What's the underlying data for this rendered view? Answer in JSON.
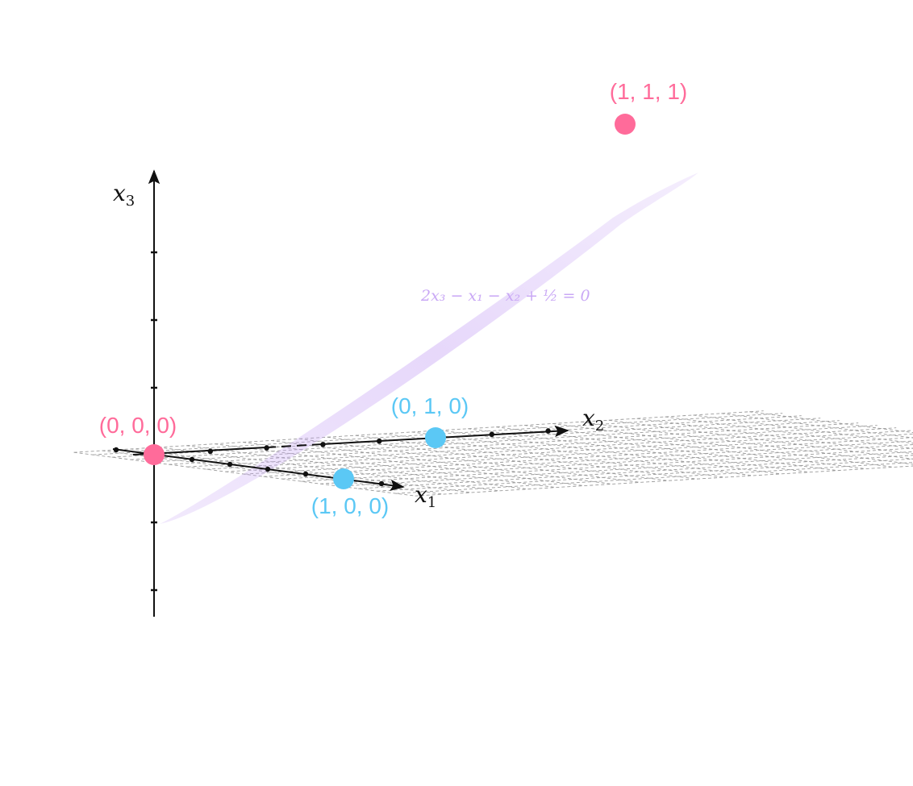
{
  "axes": {
    "x1": {
      "name": "x",
      "sub": "1"
    },
    "x2": {
      "name": "x",
      "sub": "2"
    },
    "x3": {
      "name": "x",
      "sub": "3"
    }
  },
  "points": [
    {
      "label": "(0, 0, 0)",
      "coords": [
        0,
        0,
        0
      ],
      "color": "#FF6B9A"
    },
    {
      "label": "(1, 1, 1)",
      "coords": [
        1,
        1,
        1
      ],
      "color": "#FF6B9A"
    },
    {
      "label": "(1, 0, 0)",
      "coords": [
        1,
        0,
        0
      ],
      "color": "#5BC8F5"
    },
    {
      "label": "(0, 1, 0)",
      "coords": [
        0,
        1,
        0
      ],
      "color": "#5BC8F5"
    }
  ],
  "plane": {
    "equation": "2x₃ − x₁ − x₂ + ½ = 0",
    "color": "#C9A8F5"
  },
  "colors": {
    "axis": "#111111",
    "grid": "#9a9a9a"
  }
}
